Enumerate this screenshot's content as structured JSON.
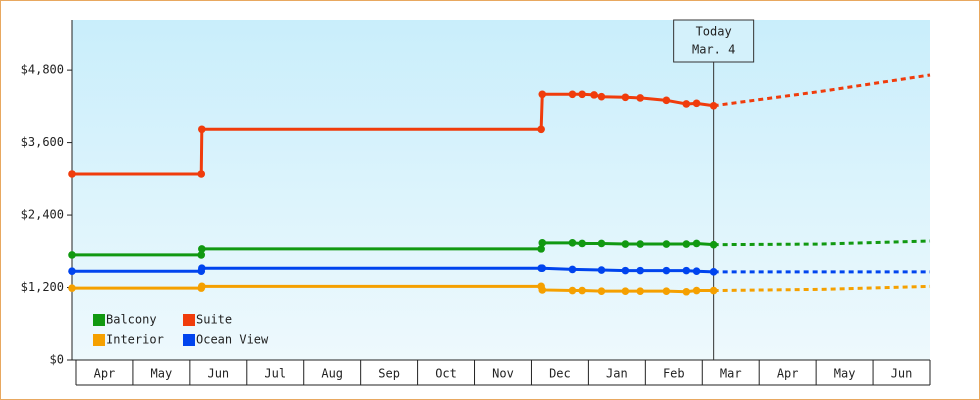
{
  "chart_data": {
    "type": "line",
    "categories": [
      "Apr",
      "May",
      "Jun",
      "Jul",
      "Aug",
      "Sep",
      "Oct",
      "Nov",
      "Dec",
      "Jan",
      "Feb",
      "Mar",
      "Apr",
      "May",
      "Jun"
    ],
    "xlim": [
      -0.07,
      15
    ],
    "ylim": [
      0,
      5630
    ],
    "yticks": [
      {
        "value": 0,
        "label": "$0"
      },
      {
        "value": 1200,
        "label": "$1,200"
      },
      {
        "value": 2400,
        "label": "$2,400"
      },
      {
        "value": 3600,
        "label": "$3,600"
      },
      {
        "value": 4800,
        "label": "$4,800"
      }
    ],
    "today": {
      "x": 11.2,
      "label": [
        "Today",
        "Mar. 4"
      ]
    },
    "series": [
      {
        "name": "Balcony",
        "color": "#119911",
        "x": [
          -0.07,
          2.2,
          2.21,
          8.17,
          8.19,
          8.72,
          8.89,
          9.23,
          9.65,
          9.91,
          10.37,
          10.72,
          10.9,
          11.2
        ],
        "values": [
          1740,
          1740,
          1840,
          1840,
          1940,
          1940,
          1930,
          1930,
          1920,
          1920,
          1920,
          1920,
          1930,
          1910
        ],
        "forecast": {
          "x": [
            11.2,
            13.1,
            15
          ],
          "values": [
            1910,
            1920,
            1970
          ]
        }
      },
      {
        "name": "Suite",
        "color": "#f03c0c",
        "x": [
          -0.07,
          2.2,
          2.21,
          8.17,
          8.19,
          8.72,
          8.89,
          9.1,
          9.23,
          9.65,
          9.91,
          10.37,
          10.72,
          10.9,
          11.2
        ],
        "values": [
          3080,
          3080,
          3820,
          3820,
          4400,
          4400,
          4400,
          4390,
          4360,
          4350,
          4340,
          4300,
          4240,
          4250,
          4210
        ],
        "forecast": {
          "x": [
            11.2,
            13.1,
            15
          ],
          "values": [
            4210,
            4450,
            4720
          ]
        }
      },
      {
        "name": "Interior",
        "color": "#f5a000",
        "x": [
          -0.07,
          2.2,
          2.21,
          8.17,
          8.19,
          8.72,
          8.89,
          9.23,
          9.65,
          9.91,
          10.37,
          10.72,
          10.9,
          11.2
        ],
        "values": [
          1190,
          1190,
          1220,
          1220,
          1160,
          1150,
          1150,
          1140,
          1140,
          1140,
          1140,
          1130,
          1150,
          1150
        ],
        "forecast": {
          "x": [
            11.2,
            13.1,
            15
          ],
          "values": [
            1150,
            1170,
            1220
          ]
        }
      },
      {
        "name": "Ocean View",
        "color": "#0044ee",
        "x": [
          -0.07,
          2.2,
          2.21,
          8.17,
          8.19,
          8.72,
          9.23,
          9.65,
          9.91,
          10.37,
          10.72,
          10.9,
          11.2
        ],
        "values": [
          1470,
          1470,
          1520,
          1520,
          1520,
          1500,
          1490,
          1480,
          1480,
          1480,
          1480,
          1470,
          1460
        ],
        "forecast": {
          "x": [
            11.2,
            13.1,
            15
          ],
          "values": [
            1460,
            1460,
            1460
          ]
        }
      }
    ]
  }
}
